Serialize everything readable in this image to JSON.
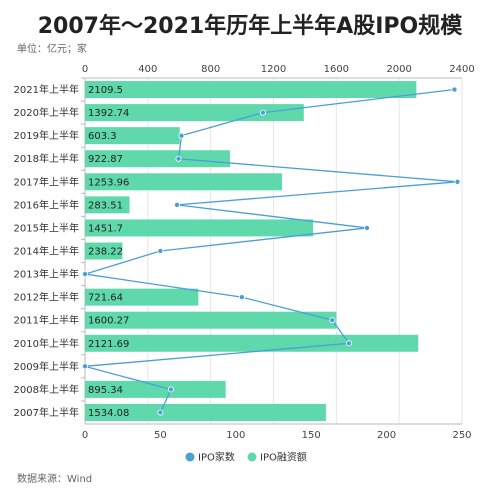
{
  "title": "2007年～2021年历年上半年A股IPO规模",
  "unit_note": "单位：亿元；家",
  "source": "数据来源：Wind",
  "colors": {
    "bar": "#5fd9ab",
    "line": "#4a9fd6",
    "grid": "#e6e6e6",
    "axis": "#bbbbbb"
  },
  "chart_data": {
    "type": "bar",
    "orientation": "horizontal",
    "categories": [
      "2021年上半年",
      "2020年上半年",
      "2019年上半年",
      "2018年上半年",
      "2017年上半年",
      "2016年上半年",
      "2015年上半年",
      "2014年上半年",
      "2013年上半年",
      "2012年上半年",
      "2011年上半年",
      "2010年上半年",
      "2009年上半年",
      "2008年上半年",
      "2007年上半年"
    ],
    "series": [
      {
        "name": "IPO融资额",
        "type": "bar",
        "axis": "top",
        "values": [
          2109.5,
          1392.74,
          603.3,
          922.87,
          1253.96,
          283.51,
          1451.7,
          238.22,
          0,
          721.64,
          1600.27,
          2121.69,
          0,
          895.34,
          1534.08
        ],
        "labels": [
          "2109.5",
          "1392.74",
          "603.3",
          "922.87",
          "1253.96",
          "283.51",
          "1451.7",
          "238.22",
          "",
          "721.64",
          "1600.27",
          "2121.69",
          "",
          "895.34",
          "1534.08"
        ]
      },
      {
        "name": "IPO家数",
        "type": "line",
        "axis": "bottom",
        "values": [
          245,
          118,
          64,
          62,
          247,
          61,
          187,
          50,
          0,
          104,
          164,
          175,
          0,
          57,
          50
        ]
      }
    ],
    "top_axis": {
      "min": 0,
      "max": 2400,
      "ticks": [
        "0",
        "400",
        "800",
        "1200",
        "1600",
        "2000",
        "2400"
      ]
    },
    "bottom_axis": {
      "min": 0,
      "max": 250,
      "ticks": [
        "0",
        "50",
        "100",
        "150",
        "200",
        "250"
      ]
    },
    "legend": [
      "IPO家数",
      "IPO融资额"
    ],
    "legend_position": "bottom",
    "grid": true
  }
}
